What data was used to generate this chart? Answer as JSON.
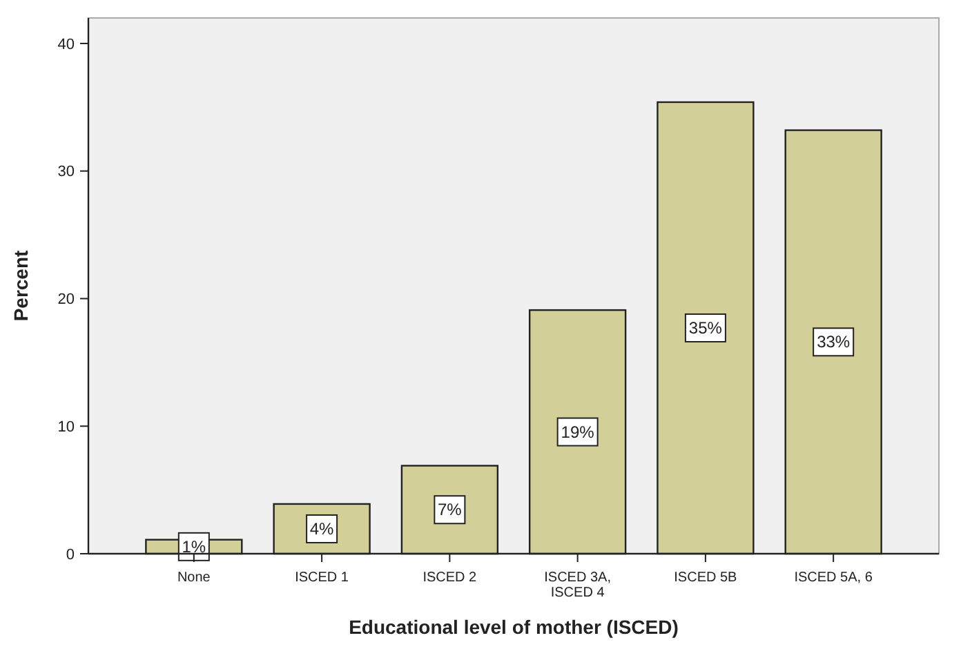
{
  "chart_data": {
    "type": "bar",
    "xlabel": "Educational level of mother (ISCED)",
    "ylabel": "Percent",
    "categories": [
      "None",
      "ISCED 1",
      "ISCED 2",
      "ISCED 3A, ISCED 4",
      "ISCED 5B",
      "ISCED 5A, 6"
    ],
    "values": [
      1.1,
      3.9,
      6.9,
      19.1,
      35.4,
      33.2
    ],
    "value_labels": [
      "1%",
      "4%",
      "7%",
      "19%",
      "35%",
      "33%"
    ],
    "color": "#d3cf98",
    "ylim": [
      0,
      42
    ],
    "yticks": [
      0,
      10,
      20,
      30,
      40
    ],
    "grid": false
  }
}
